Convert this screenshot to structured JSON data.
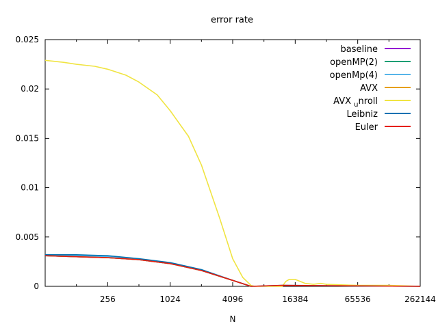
{
  "chart_data": {
    "type": "line",
    "title": "error rate",
    "xlabel": "N",
    "ylabel": "",
    "xscale": "log2",
    "xlim": [
      64,
      262144
    ],
    "ylim": [
      0,
      0.025
    ],
    "xticks": [
      {
        "value": 256,
        "label": "256"
      },
      {
        "value": 1024,
        "label": "1024"
      },
      {
        "value": 4096,
        "label": "4096"
      },
      {
        "value": 16384,
        "label": "16384"
      },
      {
        "value": 65536,
        "label": "65536"
      },
      {
        "value": 262144,
        "label": "262144"
      }
    ],
    "yticks": [
      {
        "value": 0,
        "label": "0"
      },
      {
        "value": 0.005,
        "label": "0.005"
      },
      {
        "value": 0.01,
        "label": "0.01"
      },
      {
        "value": 0.015,
        "label": "0.015"
      },
      {
        "value": 0.02,
        "label": "0.02"
      },
      {
        "value": 0.025,
        "label": "0.025"
      }
    ],
    "grid": false,
    "legend_position": "top-right",
    "series": [
      {
        "name": "baseline",
        "color": "#9400d3",
        "x": [
          64,
          128,
          256,
          512,
          1024,
          2048,
          4096,
          6144
        ],
        "y": [
          0.0031,
          0.003,
          0.0029,
          0.0027,
          0.0023,
          0.0016,
          0.0006,
          0.0
        ]
      },
      {
        "name": "openMP(2)",
        "color": "#009e73",
        "x": [
          64,
          128,
          256,
          512,
          1024,
          2048,
          4096,
          6144
        ],
        "y": [
          0.0031,
          0.003,
          0.0029,
          0.0027,
          0.0023,
          0.0016,
          0.0006,
          0.0
        ]
      },
      {
        "name": "openMp(4)",
        "color": "#56b4e9",
        "x": [
          64,
          128,
          256,
          512,
          1024,
          2048,
          4096,
          6144
        ],
        "y": [
          0.0031,
          0.0031,
          0.003,
          0.0027,
          0.0023,
          0.0016,
          0.0006,
          0.0
        ]
      },
      {
        "name": "AVX",
        "color": "#e69f00",
        "x": [
          64,
          128,
          256,
          512,
          1024,
          2048,
          4096,
          6144
        ],
        "y": [
          0.0031,
          0.003,
          0.0029,
          0.0027,
          0.0023,
          0.0016,
          0.0006,
          0.0
        ]
      },
      {
        "name": "AVX_unroll",
        "color": "#f0e442",
        "x": [
          64,
          96,
          128,
          192,
          256,
          384,
          512,
          768,
          1024,
          1536,
          2048,
          3072,
          4096,
          5120,
          6144,
          6656,
          12288,
          13312,
          14336,
          16384,
          20480,
          24576,
          28672,
          32768,
          65536,
          131072,
          262144
        ],
        "y": [
          0.0229,
          0.0227,
          0.0225,
          0.0223,
          0.022,
          0.0214,
          0.0207,
          0.0194,
          0.0178,
          0.0152,
          0.0123,
          0.0069,
          0.0028,
          0.0009,
          0.0001,
          0.0,
          0.0,
          0.0005,
          0.0007,
          0.0007,
          0.0003,
          0.0002,
          0.0003,
          0.0002,
          0.0001,
          0.0001,
          0.0
        ]
      },
      {
        "name": "Leibniz",
        "color": "#0072b2",
        "x": [
          64,
          128,
          256,
          512,
          1024,
          2048,
          4096,
          6144,
          12288,
          262144
        ],
        "y": [
          0.0032,
          0.0032,
          0.0031,
          0.0028,
          0.0024,
          0.0017,
          0.0006,
          0.0,
          0.0001,
          0.0
        ]
      },
      {
        "name": "Euler",
        "color": "#e51e10",
        "x": [
          64,
          128,
          256,
          512,
          1024,
          2048,
          4096,
          6144,
          12288,
          262144
        ],
        "y": [
          0.0031,
          0.003,
          0.0029,
          0.0027,
          0.0023,
          0.0016,
          0.0006,
          0.0,
          0.0001,
          0.0
        ]
      }
    ]
  }
}
